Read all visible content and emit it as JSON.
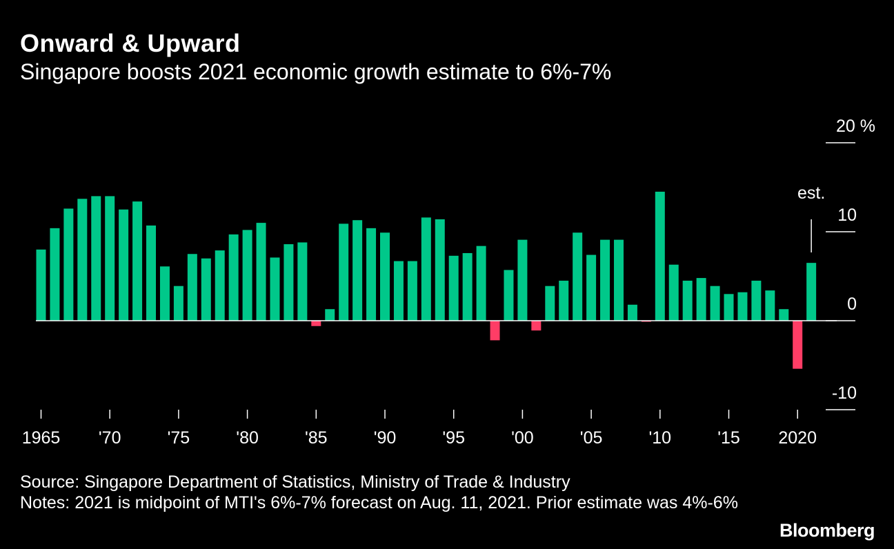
{
  "header": {
    "title": "Onward & Upward",
    "subtitle": "Singapore boosts 2021 economic growth estimate to 6%-7%"
  },
  "chart_data": {
    "type": "bar",
    "x": [
      1965,
      1966,
      1967,
      1968,
      1969,
      1970,
      1971,
      1972,
      1973,
      1974,
      1975,
      1976,
      1977,
      1978,
      1979,
      1980,
      1981,
      1982,
      1983,
      1984,
      1985,
      1986,
      1987,
      1988,
      1989,
      1990,
      1991,
      1992,
      1993,
      1994,
      1995,
      1996,
      1997,
      1998,
      1999,
      2000,
      2001,
      2002,
      2003,
      2004,
      2005,
      2006,
      2007,
      2008,
      2009,
      2010,
      2011,
      2012,
      2013,
      2014,
      2015,
      2016,
      2017,
      2018,
      2019,
      2020,
      2021
    ],
    "values": [
      8.0,
      10.4,
      12.6,
      13.7,
      14.0,
      14.0,
      12.5,
      13.4,
      10.7,
      6.1,
      3.9,
      7.5,
      7.0,
      7.9,
      9.7,
      10.2,
      11.0,
      7.1,
      8.6,
      8.8,
      -0.6,
      1.3,
      10.9,
      11.3,
      10.4,
      9.9,
      6.7,
      6.7,
      11.6,
      11.4,
      7.3,
      7.6,
      8.4,
      -2.2,
      5.7,
      9.1,
      -1.1,
      3.9,
      4.5,
      9.9,
      7.4,
      9.1,
      9.1,
      1.8,
      -0.1,
      14.5,
      6.3,
      4.5,
      4.8,
      3.9,
      3.0,
      3.2,
      4.5,
      3.4,
      1.3,
      -5.4,
      6.5
    ],
    "yticks": [
      {
        "value": 20,
        "label": "20 %"
      },
      {
        "value": 10,
        "label": "10"
      },
      {
        "value": 0,
        "label": "0"
      },
      {
        "value": -10,
        "label": "-10"
      }
    ],
    "xticks": [
      {
        "year": 1965,
        "label": "1965"
      },
      {
        "year": 1970,
        "label": "'70"
      },
      {
        "year": 1975,
        "label": "'75"
      },
      {
        "year": 1980,
        "label": "'80"
      },
      {
        "year": 1985,
        "label": "'85"
      },
      {
        "year": 1990,
        "label": "'90"
      },
      {
        "year": 1995,
        "label": "'95"
      },
      {
        "year": 2000,
        "label": "'00"
      },
      {
        "year": 2005,
        "label": "'05"
      },
      {
        "year": 2010,
        "label": "'10"
      },
      {
        "year": 2015,
        "label": "'15"
      },
      {
        "year": 2020,
        "label": "2020"
      }
    ],
    "ylim": [
      -10,
      20
    ],
    "annotation": {
      "year": 2021,
      "text": "est."
    },
    "colors": {
      "positive": "#00c88a",
      "negative": "#ff3d66",
      "axis": "#ffffff",
      "text": "#ffffff"
    }
  },
  "footer": {
    "source": "Source: Singapore Department of Statistics, Ministry of Trade & Industry",
    "notes": "Notes: 2021 is midpoint of MTI's 6%-7% forecast on Aug. 11, 2021. Prior estimate was 4%-6%"
  },
  "brand": "Bloomberg"
}
